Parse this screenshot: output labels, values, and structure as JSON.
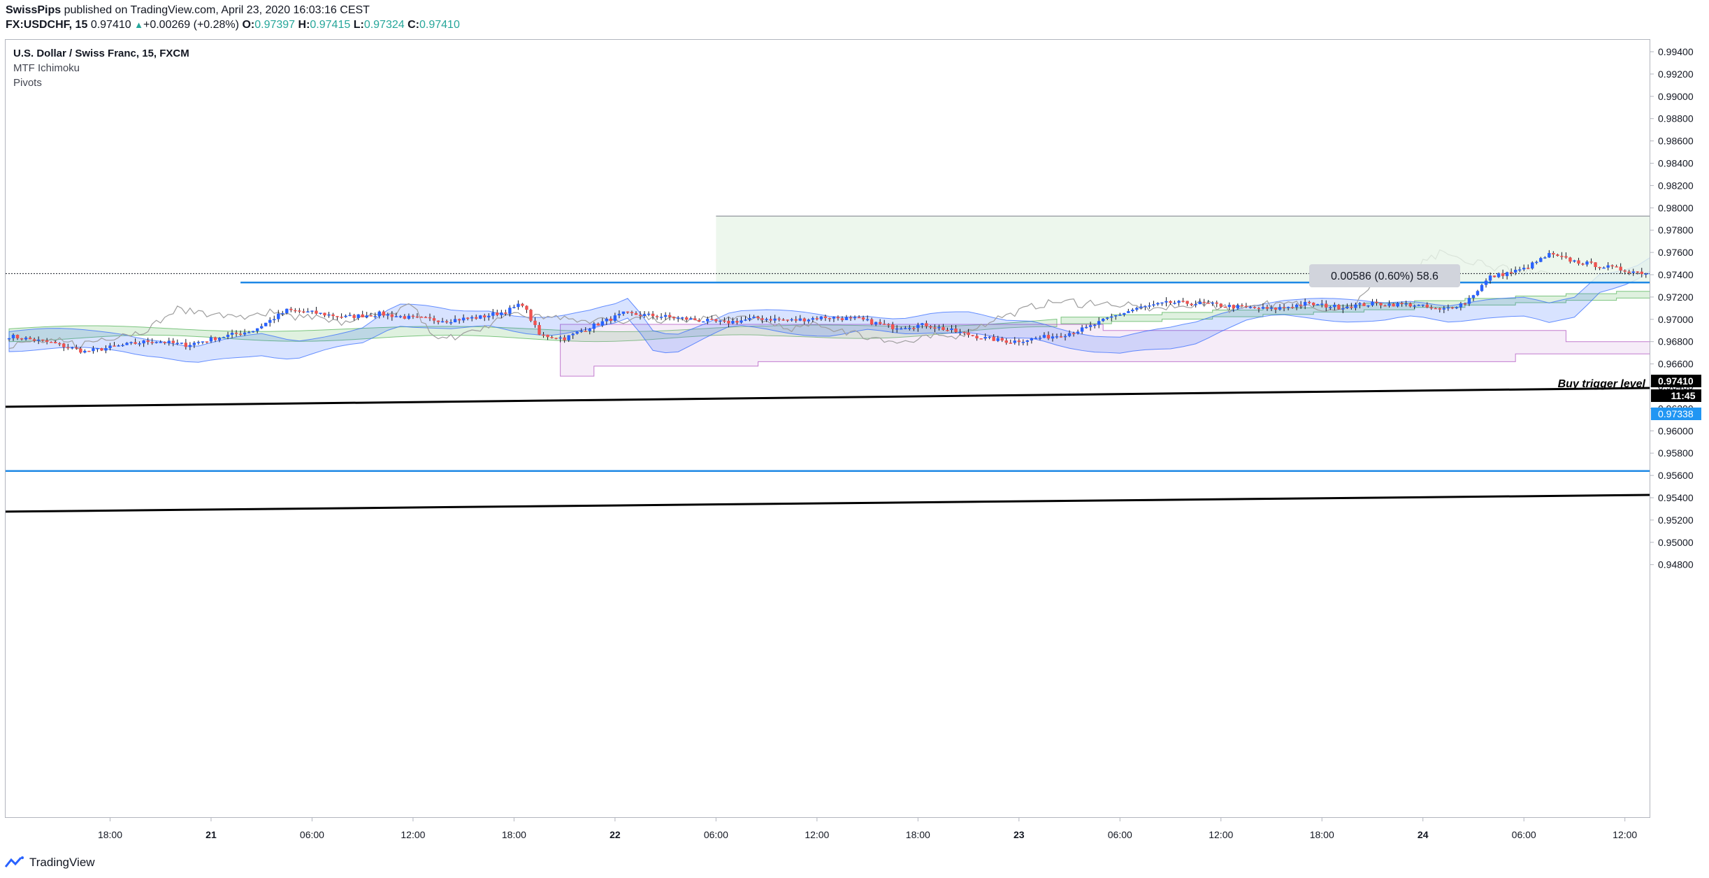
{
  "header": {
    "author": "SwissPips",
    "published": "published on TradingView.com, April 23, 2020 16:03:16 CEST",
    "symbol": "FX:USDCHF, 15",
    "last": "0.97410",
    "change_arrow": "▲",
    "change": "+0.00269 (+0.28%)",
    "o_label": "O:",
    "o_value": "0.97397",
    "h_label": "H:",
    "h_value": "0.97415",
    "l_label": "L:",
    "l_value": "0.97324",
    "c_label": "C:",
    "c_value": "0.97410"
  },
  "legend": {
    "title": "U.S. Dollar / Swiss Franc, 15, FXCM",
    "indicators": [
      "MTF Ichimoku",
      "Pivots"
    ]
  },
  "footer": {
    "brand": "TradingView",
    "logo_icon": "tradingview-logo-icon"
  },
  "colors": {
    "up": "#2962ff",
    "down": "#ef5350",
    "cloud_green": "#4caf50",
    "cloud_blue": "#2962ff",
    "cloud_purple": "#ce93d8",
    "level_blue": "#1e88e5",
    "trend": "#000000",
    "measure_fill": "#e8f5e9"
  },
  "chart_data": {
    "type": "candlestick",
    "title": "U.S. Dollar / Swiss Franc, 15, FXCM",
    "ylim": [
      0.948,
      0.995
    ],
    "y_ticks": [
      "0.99400",
      "0.99200",
      "0.99000",
      "0.98800",
      "0.98600",
      "0.98400",
      "0.98200",
      "0.98000",
      "0.97800",
      "0.97600",
      "0.97400",
      "0.97200",
      "0.97000",
      "0.96800",
      "0.96600",
      "0.96400",
      "0.96200",
      "0.96000",
      "0.95800",
      "0.95600",
      "0.95400",
      "0.95200",
      "0.95000",
      "0.94800"
    ],
    "x_ticks": [
      "18:00",
      "21",
      "06:00",
      "12:00",
      "18:00",
      "22",
      "06:00",
      "12:00",
      "18:00",
      "23",
      "06:00",
      "12:00",
      "18:00",
      "24",
      "06:00",
      "12:00"
    ],
    "x_tick_bold": [
      false,
      true,
      false,
      false,
      false,
      true,
      false,
      false,
      false,
      true,
      false,
      false,
      false,
      true,
      false,
      false
    ],
    "bars_per_tick": 24,
    "first_tick_bar": 24,
    "close_path": [
      [
        0,
        0.9685
      ],
      [
        10,
        0.9679
      ],
      [
        18,
        0.9671
      ],
      [
        26,
        0.9676
      ],
      [
        34,
        0.9681
      ],
      [
        42,
        0.9677
      ],
      [
        50,
        0.9684
      ],
      [
        58,
        0.969
      ],
      [
        66,
        0.9708
      ],
      [
        72,
        0.9706
      ],
      [
        80,
        0.9702
      ],
      [
        88,
        0.9705
      ],
      [
        96,
        0.9701
      ],
      [
        104,
        0.9699
      ],
      [
        112,
        0.9702
      ],
      [
        118,
        0.9707
      ],
      [
        122,
        0.9714
      ],
      [
        126,
        0.9686
      ],
      [
        132,
        0.9683
      ],
      [
        138,
        0.9693
      ],
      [
        146,
        0.9705
      ],
      [
        154,
        0.9703
      ],
      [
        162,
        0.97
      ],
      [
        170,
        0.9697
      ],
      [
        178,
        0.9701
      ],
      [
        186,
        0.9699
      ],
      [
        194,
        0.9702
      ],
      [
        202,
        0.97
      ],
      [
        210,
        0.9693
      ],
      [
        218,
        0.9695
      ],
      [
        226,
        0.9688
      ],
      [
        232,
        0.9683
      ],
      [
        238,
        0.968
      ],
      [
        244,
        0.9683
      ],
      [
        250,
        0.9686
      ],
      [
        256,
        0.9692
      ],
      [
        262,
        0.9702
      ],
      [
        268,
        0.971
      ],
      [
        276,
        0.9715
      ],
      [
        284,
        0.9714
      ],
      [
        292,
        0.9711
      ],
      [
        300,
        0.9709
      ],
      [
        308,
        0.9714
      ],
      [
        316,
        0.9711
      ],
      [
        324,
        0.9714
      ],
      [
        334,
        0.9713
      ],
      [
        340,
        0.9708
      ],
      [
        346,
        0.9715
      ],
      [
        352,
        0.9738
      ],
      [
        360,
        0.9745
      ],
      [
        366,
        0.9758
      ],
      [
        372,
        0.9752
      ],
      [
        378,
        0.9748
      ],
      [
        384,
        0.9744
      ],
      [
        388,
        0.9742
      ],
      [
        392,
        0.9741
      ]
    ],
    "candle_count": 393,
    "last_price": "0.97410",
    "countdown": "11:45",
    "level_price": "0.97338",
    "horizontal_levels": [
      0.9733,
      0.9564
    ],
    "annotations": {
      "buy_trigger": "Buy trigger level",
      "measure": "0.00586 (0.60%) 58.6"
    }
  }
}
